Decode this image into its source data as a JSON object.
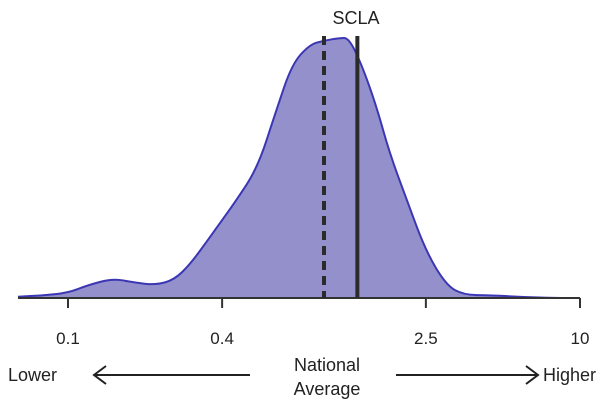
{
  "chart_data": {
    "type": "area",
    "x_scale": "log",
    "xlim": [
      0.05,
      10
    ],
    "xticks": [
      {
        "value": 0.1,
        "label": "0.1"
      },
      {
        "value": 0.4,
        "label": "0.4"
      },
      {
        "value": 2.5,
        "label": "2.5"
      },
      {
        "value": 10,
        "label": "10"
      }
    ],
    "density": [
      [
        0.05,
        0.005
      ],
      [
        0.08,
        0.01
      ],
      [
        0.1,
        0.02
      ],
      [
        0.12,
        0.05
      ],
      [
        0.15,
        0.075
      ],
      [
        0.18,
        0.06
      ],
      [
        0.22,
        0.05
      ],
      [
        0.26,
        0.07
      ],
      [
        0.3,
        0.13
      ],
      [
        0.35,
        0.22
      ],
      [
        0.4,
        0.3
      ],
      [
        0.45,
        0.37
      ],
      [
        0.55,
        0.5
      ],
      [
        0.65,
        0.72
      ],
      [
        0.75,
        0.9
      ],
      [
        0.88,
        0.975
      ],
      [
        1.0,
        0.99
      ],
      [
        1.15,
        1.0
      ],
      [
        1.25,
        1.0
      ],
      [
        1.4,
        0.9
      ],
      [
        1.6,
        0.74
      ],
      [
        1.8,
        0.56
      ],
      [
        2.1,
        0.38
      ],
      [
        2.5,
        0.18
      ],
      [
        3.0,
        0.05
      ],
      [
        3.5,
        0.012
      ],
      [
        4.5,
        0.01
      ],
      [
        6,
        0.004
      ],
      [
        8,
        0.0
      ],
      [
        10,
        0.0
      ]
    ],
    "markers": [
      {
        "name": "national-average",
        "x": 1.0,
        "style": "dashed"
      },
      {
        "name": "scla",
        "x": 1.35,
        "style": "solid",
        "label": "SCLA"
      }
    ],
    "fill_color": "#9390cb",
    "line_color": "#3b36b4",
    "axis_color": "#333333"
  },
  "annotations": {
    "lower": "Lower",
    "higher": "Higher",
    "center_line1": "National",
    "center_line2": "Average"
  }
}
